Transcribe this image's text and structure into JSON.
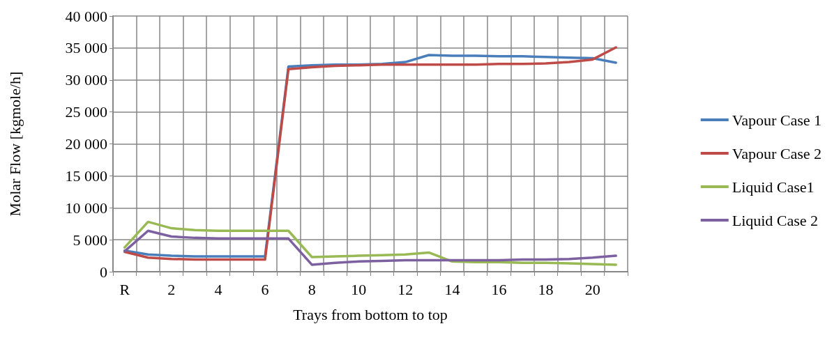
{
  "chart_data": {
    "type": "line",
    "xlabel": "Trays from bottom to top",
    "ylabel": "Molar Flow [kgmole/h]",
    "categories": [
      "R",
      null,
      "2",
      null,
      "4",
      null,
      "6",
      null,
      "8",
      null,
      "10",
      null,
      "12",
      null,
      "14",
      null,
      "16",
      null,
      "18",
      null,
      "20",
      null
    ],
    "series": [
      {
        "name": "Vapour Case 1",
        "color": "#4a7ebb",
        "values": [
          3300,
          2700,
          2500,
          2400,
          2400,
          2400,
          2400,
          32100,
          32300,
          32400,
          32400,
          32500,
          32800,
          33900,
          33800,
          33800,
          33700,
          33700,
          33600,
          33500,
          33400,
          32700
        ]
      },
      {
        "name": "Vapour Case 2",
        "color": "#be4b48",
        "values": [
          3100,
          2200,
          2000,
          1900,
          1900,
          1900,
          1900,
          31700,
          32000,
          32200,
          32300,
          32400,
          32400,
          32400,
          32400,
          32400,
          32500,
          32500,
          32600,
          32800,
          33200,
          35100
        ]
      },
      {
        "name": "Liquid Case1",
        "color": "#98b954",
        "values": [
          3800,
          7800,
          6800,
          6500,
          6400,
          6400,
          6400,
          6400,
          2300,
          2400,
          2500,
          2600,
          2700,
          3000,
          1600,
          1500,
          1500,
          1400,
          1400,
          1300,
          1200,
          1100
        ]
      },
      {
        "name": "Liquid Case 2",
        "color": "#7d60a0",
        "values": [
          3200,
          6400,
          5500,
          5300,
          5200,
          5200,
          5200,
          5200,
          1100,
          1400,
          1600,
          1700,
          1800,
          1800,
          1800,
          1800,
          1800,
          1900,
          1900,
          2000,
          2200,
          2500
        ]
      }
    ],
    "ylim": [
      0,
      40000
    ],
    "yticks": [
      0,
      {
        "value": 5000,
        "label": "5 000"
      },
      {
        "value": 10000,
        "label": "10 000"
      },
      {
        "value": 15000,
        "label": "15 000"
      },
      {
        "value": 20000,
        "label": "20 000"
      },
      {
        "value": 25000,
        "label": "25 000"
      },
      {
        "value": 30000,
        "label": "30 000"
      },
      {
        "value": 35000,
        "label": "35 000"
      },
      {
        "value": 40000,
        "label": "40 000"
      }
    ],
    "grid": true,
    "legend": "right",
    "marker": "none",
    "line_style": "solid"
  }
}
